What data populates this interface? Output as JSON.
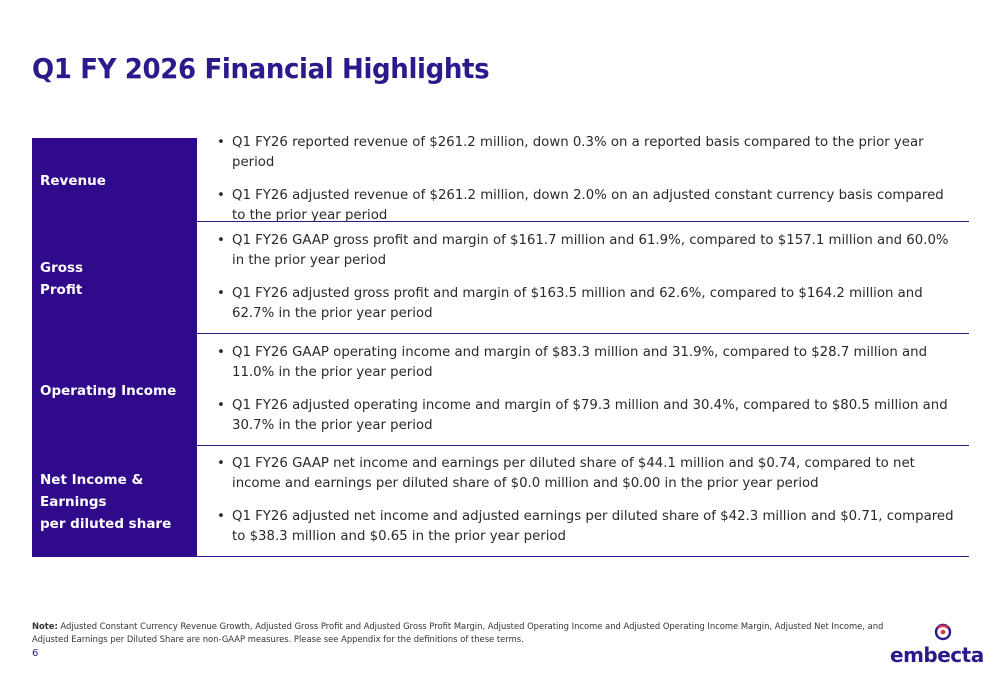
{
  "title": "Q1 FY 2026 Financial Highlights",
  "rows": [
    {
      "label_lines": [
        "Revenue"
      ],
      "bullets": [
        "Q1 FY26 reported revenue of $261.2 million, down 0.3% on a reported basis compared to the prior year period",
        "Q1 FY26 adjusted revenue of $261.2 million, down 2.0% on an adjusted constant currency basis compared to the prior year period"
      ]
    },
    {
      "label_lines": [
        "Gross",
        "Profit"
      ],
      "bullets": [
        "Q1 FY26 GAAP gross profit and margin of $161.7 million and 61.9%, compared to $157.1 million and 60.0% in the prior year period",
        "Q1 FY26 adjusted gross profit and margin of $163.5 million and 62.6%, compared to $164.2 million and 62.7% in the prior year period"
      ]
    },
    {
      "label_lines": [
        "Operating Income"
      ],
      "bullets": [
        "Q1 FY26 GAAP operating income and margin of $83.3 million and 31.9%, compared to $28.7 million and 11.0% in the prior year period",
        "Q1 FY26 adjusted operating income and margin of $79.3 million and 30.4%, compared to $80.5 million and 30.7% in the prior year period"
      ]
    },
    {
      "label_lines": [
        "Net Income & Earnings",
        "per diluted share"
      ],
      "bullets": [
        "Q1 FY26 GAAP net income and earnings per diluted share of $44.1 million and $0.74, compared to net income and earnings per diluted share of $0.0 million and $0.00 in the prior year period",
        "Q1 FY26 adjusted net income and adjusted earnings per diluted share of $42.3 million and $0.71, compared to $38.3 million and $0.65 in the prior year period"
      ]
    }
  ],
  "note": {
    "label": "Note:",
    "text": "Adjusted Constant Currency Revenue Growth, Adjusted Gross Profit and Adjusted Gross Profit Margin, Adjusted Operating Income and Adjusted Operating Income Margin, Adjusted Net Income, and Adjusted Earnings per Diluted Share are non-GAAP measures. Please see Appendix for the definitions of these terms."
  },
  "page_number": "6",
  "logo": {
    "text": "embecta",
    "icon": "embecta-logo-icon"
  },
  "colors": {
    "brand": "#2b1a8c",
    "label_bg": "#2f0a8a"
  }
}
